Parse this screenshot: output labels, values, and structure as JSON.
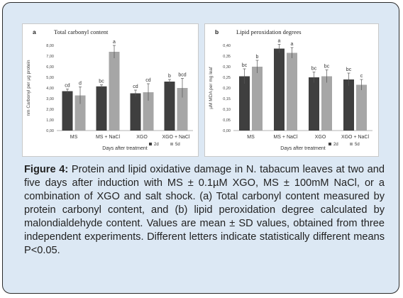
{
  "chart_data": [
    {
      "type": "bar",
      "panel_label": "a",
      "title": "Total carbonyl content",
      "ylabel": "nm Carbonyl per µg protein",
      "xlabel": "Days after treatment",
      "categories": [
        "MS",
        "MS + NaCl",
        "XGO",
        "XGO + NaCl"
      ],
      "ylim": [
        0,
        8
      ],
      "yticks": [
        "0,00",
        "1,00",
        "2,00",
        "3,00",
        "4,00",
        "5,00",
        "6,00",
        "7,00",
        "8,00"
      ],
      "series": [
        {
          "name": "2d",
          "color": "#3f3f3f",
          "values": [
            3.7,
            4.15,
            3.5,
            4.6
          ],
          "errors": [
            0.2,
            0.15,
            0.3,
            0.2
          ],
          "letters": [
            "cd",
            "bc",
            "cd",
            "b"
          ]
        },
        {
          "name": "5d",
          "color": "#a6a6a6",
          "values": [
            3.3,
            7.4,
            3.6,
            4.0
          ],
          "errors": [
            0.8,
            0.6,
            0.8,
            0.9
          ],
          "letters": [
            "d",
            "a",
            "cd",
            "bcd"
          ]
        }
      ]
    },
    {
      "type": "bar",
      "panel_label": "b",
      "title": "Lipid peroxidation degrees",
      "ylabel": "µM MDA per mg leaf",
      "xlabel": "Days after treatment",
      "categories": [
        "MS",
        "MS + NaCl",
        "XGO",
        "XGO + NaCl"
      ],
      "ylim": [
        0,
        0.4
      ],
      "yticks": [
        "0,00",
        "0,05",
        "0,10",
        "0,15",
        "0,20",
        "0,25",
        "0,30",
        "0,35",
        "0,40"
      ],
      "series": [
        {
          "name": "2d",
          "color": "#3f3f3f",
          "values": [
            0.255,
            0.385,
            0.25,
            0.24
          ],
          "errors": [
            0.035,
            0.02,
            0.025,
            0.03
          ],
          "letters": [
            "bc",
            "a",
            "bc",
            "bc"
          ]
        },
        {
          "name": "5d",
          "color": "#a6a6a6",
          "values": [
            0.3,
            0.365,
            0.255,
            0.215
          ],
          "errors": [
            0.03,
            0.025,
            0.03,
            0.025
          ],
          "letters": [
            "b",
            "a",
            "bc",
            "c"
          ]
        }
      ]
    }
  ],
  "caption": {
    "label": "Figure 4:",
    "text": " Protein and lipid oxidative damage in N. tabacum leaves at two and five days after induction with MS ± 0.1µM XGO, MS ± 100mM NaCl, or a combination of XGO and salt shock. (a) Total carbonyl content measured by protein carbonyl content, and (b) lipid peroxidation degree calculated by malondialdehyde content. Values are mean ± SD values, obtained from three independent experiments. Different letters indicate statistically different means P<0.05."
  },
  "colors": {
    "frame_bg": "#dce8f4",
    "dark_bar": "#3f3f3f",
    "light_bar": "#a6a6a6"
  }
}
